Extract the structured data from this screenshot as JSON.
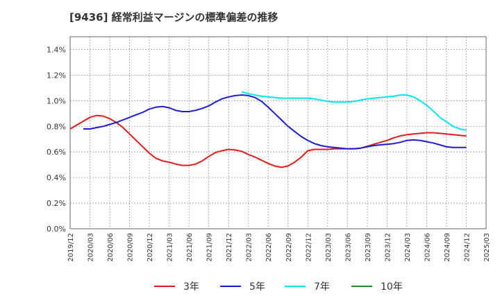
{
  "chart_data": {
    "type": "line",
    "title": "[9436]  経常利益マージンの標準偏差の推移",
    "xlabel": "",
    "ylabel": "",
    "x_ticks": [
      "2019/12",
      "2020/03",
      "2020/06",
      "2020/09",
      "2020/12",
      "2021/03",
      "2021/06",
      "2021/09",
      "2021/12",
      "2022/03",
      "2022/06",
      "2022/09",
      "2022/12",
      "2023/03",
      "2023/06",
      "2023/09",
      "2023/12",
      "2024/03",
      "2024/06",
      "2024/09",
      "2024/12",
      "2025/03"
    ],
    "y_ticks": [
      "0.0%",
      "0.2%",
      "0.4%",
      "0.6%",
      "0.8%",
      "1.0%",
      "1.2%",
      "1.4%"
    ],
    "ylim": [
      0,
      1.5
    ],
    "grid": true,
    "legend_position": "bottom",
    "series": [
      {
        "name": "3年",
        "color": "#e31a1c",
        "points": [
          [
            "2019/12",
            0.78
          ],
          [
            "2020/01",
            0.81
          ],
          [
            "2020/02",
            0.84
          ],
          [
            "2020/03",
            0.87
          ],
          [
            "2020/04",
            0.885
          ],
          [
            "2020/05",
            0.88
          ],
          [
            "2020/06",
            0.86
          ],
          [
            "2020/07",
            0.83
          ],
          [
            "2020/08",
            0.79
          ],
          [
            "2020/09",
            0.74
          ],
          [
            "2020/10",
            0.69
          ],
          [
            "2020/11",
            0.64
          ],
          [
            "2020/12",
            0.59
          ],
          [
            "2021/01",
            0.55
          ],
          [
            "2021/02",
            0.53
          ],
          [
            "2021/03",
            0.52
          ],
          [
            "2021/04",
            0.505
          ],
          [
            "2021/05",
            0.495
          ],
          [
            "2021/06",
            0.495
          ],
          [
            "2021/07",
            0.505
          ],
          [
            "2021/08",
            0.53
          ],
          [
            "2021/09",
            0.565
          ],
          [
            "2021/10",
            0.595
          ],
          [
            "2021/11",
            0.61
          ],
          [
            "2021/12",
            0.62
          ],
          [
            "2022/01",
            0.615
          ],
          [
            "2022/02",
            0.605
          ],
          [
            "2022/03",
            0.58
          ],
          [
            "2022/04",
            0.56
          ],
          [
            "2022/05",
            0.535
          ],
          [
            "2022/06",
            0.51
          ],
          [
            "2022/07",
            0.49
          ],
          [
            "2022/08",
            0.48
          ],
          [
            "2022/09",
            0.49
          ],
          [
            "2022/10",
            0.52
          ],
          [
            "2022/11",
            0.56
          ],
          [
            "2022/12",
            0.61
          ],
          [
            "2023/01",
            0.62
          ],
          [
            "2023/02",
            0.62
          ],
          [
            "2023/03",
            0.62
          ],
          [
            "2023/04",
            0.625
          ],
          [
            "2023/05",
            0.625
          ],
          [
            "2023/06",
            0.625
          ],
          [
            "2023/07",
            0.625
          ],
          [
            "2023/08",
            0.63
          ],
          [
            "2023/09",
            0.645
          ],
          [
            "2023/10",
            0.66
          ],
          [
            "2023/11",
            0.675
          ],
          [
            "2023/12",
            0.69
          ],
          [
            "2024/01",
            0.71
          ],
          [
            "2024/02",
            0.725
          ],
          [
            "2024/03",
            0.735
          ],
          [
            "2024/04",
            0.74
          ],
          [
            "2024/05",
            0.745
          ],
          [
            "2024/06",
            0.75
          ],
          [
            "2024/07",
            0.75
          ],
          [
            "2024/08",
            0.745
          ],
          [
            "2024/09",
            0.74
          ],
          [
            "2024/10",
            0.735
          ],
          [
            "2024/11",
            0.73
          ],
          [
            "2024/12",
            0.725
          ]
        ]
      },
      {
        "name": "5年",
        "color": "#1a1ad6",
        "points": [
          [
            "2020/02",
            0.78
          ],
          [
            "2020/03",
            0.78
          ],
          [
            "2020/04",
            0.79
          ],
          [
            "2020/05",
            0.8
          ],
          [
            "2020/06",
            0.815
          ],
          [
            "2020/07",
            0.83
          ],
          [
            "2020/08",
            0.85
          ],
          [
            "2020/09",
            0.87
          ],
          [
            "2020/10",
            0.89
          ],
          [
            "2020/11",
            0.91
          ],
          [
            "2020/12",
            0.935
          ],
          [
            "2021/01",
            0.95
          ],
          [
            "2021/02",
            0.955
          ],
          [
            "2021/03",
            0.945
          ],
          [
            "2021/04",
            0.925
          ],
          [
            "2021/05",
            0.915
          ],
          [
            "2021/06",
            0.915
          ],
          [
            "2021/07",
            0.925
          ],
          [
            "2021/08",
            0.94
          ],
          [
            "2021/09",
            0.96
          ],
          [
            "2021/10",
            0.99
          ],
          [
            "2021/11",
            1.015
          ],
          [
            "2021/12",
            1.03
          ],
          [
            "2022/01",
            1.04
          ],
          [
            "2022/02",
            1.045
          ],
          [
            "2022/03",
            1.04
          ],
          [
            "2022/04",
            1.025
          ],
          [
            "2022/05",
            0.995
          ],
          [
            "2022/06",
            0.95
          ],
          [
            "2022/07",
            0.9
          ],
          [
            "2022/08",
            0.85
          ],
          [
            "2022/09",
            0.8
          ],
          [
            "2022/10",
            0.76
          ],
          [
            "2022/11",
            0.72
          ],
          [
            "2022/12",
            0.69
          ],
          [
            "2023/01",
            0.665
          ],
          [
            "2023/02",
            0.65
          ],
          [
            "2023/03",
            0.64
          ],
          [
            "2023/04",
            0.635
          ],
          [
            "2023/05",
            0.63
          ],
          [
            "2023/06",
            0.625
          ],
          [
            "2023/07",
            0.625
          ],
          [
            "2023/08",
            0.63
          ],
          [
            "2023/09",
            0.64
          ],
          [
            "2023/10",
            0.65
          ],
          [
            "2023/11",
            0.655
          ],
          [
            "2023/12",
            0.66
          ],
          [
            "2024/01",
            0.665
          ],
          [
            "2024/02",
            0.675
          ],
          [
            "2024/03",
            0.69
          ],
          [
            "2024/04",
            0.695
          ],
          [
            "2024/05",
            0.69
          ],
          [
            "2024/06",
            0.68
          ],
          [
            "2024/07",
            0.67
          ],
          [
            "2024/08",
            0.655
          ],
          [
            "2024/09",
            0.64
          ],
          [
            "2024/10",
            0.635
          ],
          [
            "2024/11",
            0.635
          ],
          [
            "2024/12",
            0.635
          ]
        ]
      },
      {
        "name": "7年",
        "color": "#00e5ee",
        "points": [
          [
            "2022/02",
            1.07
          ],
          [
            "2022/03",
            1.055
          ],
          [
            "2022/04",
            1.045
          ],
          [
            "2022/05",
            1.035
          ],
          [
            "2022/06",
            1.03
          ],
          [
            "2022/07",
            1.025
          ],
          [
            "2022/08",
            1.02
          ],
          [
            "2022/09",
            1.02
          ],
          [
            "2022/10",
            1.02
          ],
          [
            "2022/11",
            1.02
          ],
          [
            "2022/12",
            1.02
          ],
          [
            "2023/01",
            1.015
          ],
          [
            "2023/02",
            1.005
          ],
          [
            "2023/03",
            0.995
          ],
          [
            "2023/04",
            0.99
          ],
          [
            "2023/05",
            0.99
          ],
          [
            "2023/06",
            0.99
          ],
          [
            "2023/07",
            0.995
          ],
          [
            "2023/08",
            1.005
          ],
          [
            "2023/09",
            1.015
          ],
          [
            "2023/10",
            1.02
          ],
          [
            "2023/11",
            1.025
          ],
          [
            "2023/12",
            1.03
          ],
          [
            "2024/01",
            1.035
          ],
          [
            "2024/02",
            1.045
          ],
          [
            "2024/03",
            1.045
          ],
          [
            "2024/04",
            1.03
          ],
          [
            "2024/05",
            1.0
          ],
          [
            "2024/06",
            0.965
          ],
          [
            "2024/07",
            0.92
          ],
          [
            "2024/08",
            0.87
          ],
          [
            "2024/09",
            0.835
          ],
          [
            "2024/10",
            0.8
          ],
          [
            "2024/11",
            0.78
          ],
          [
            "2024/12",
            0.77
          ]
        ]
      },
      {
        "name": "10年",
        "color": "#228b22",
        "points": []
      }
    ]
  }
}
